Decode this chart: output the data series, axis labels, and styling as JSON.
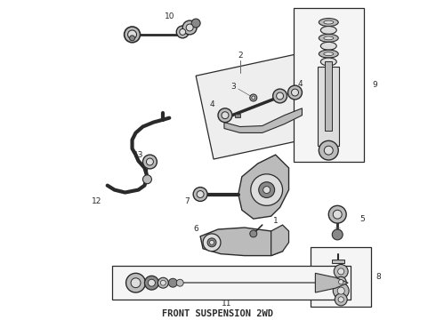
{
  "title": "FRONT SUSPENSION 2WD",
  "bg_color": "#ffffff",
  "title_fontsize": 7.5,
  "title_font": "monospace",
  "fig_width": 4.9,
  "fig_height": 3.6,
  "dpi": 100,
  "label_size": 6.5,
  "colors": {
    "dark": "#2a2a2a",
    "mid": "#666666",
    "light": "#aaaaaa",
    "fill_dark": "#888888",
    "fill_mid": "#bbbbbb",
    "fill_light": "#dddddd",
    "box_bg": "#f5f5f5",
    "panel_bg": "#eeeeee"
  }
}
